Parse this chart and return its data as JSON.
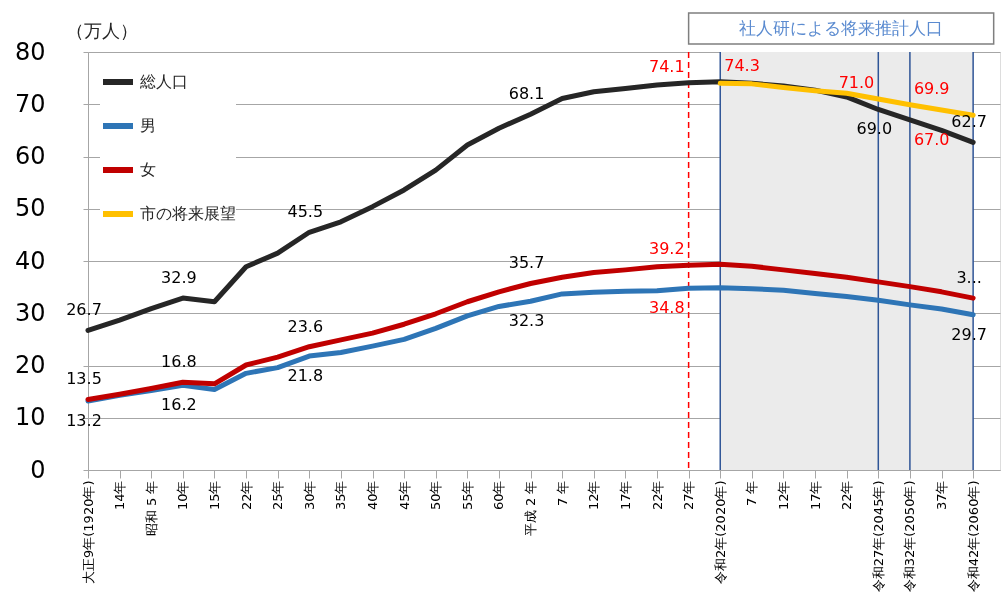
{
  "chart_data": {
    "type": "line",
    "ylabel": "（万人）",
    "categories": [
      "大正9年(1920年)",
      "14年",
      "昭和 5 年",
      "10年",
      "15年",
      "22年",
      "25年",
      "30年",
      "35年",
      "40年",
      "45年",
      "50年",
      "55年",
      "60年",
      "平成 2 年",
      "7 年",
      "12年",
      "17年",
      "22年",
      "27年",
      "令和2年(2020年)",
      "7 年",
      "12年",
      "17年",
      "22年",
      "令和27年(2045年)",
      "令和32年(2050年)",
      "37年",
      "令和42年(2060年)"
    ],
    "series": [
      {
        "name": "総人口",
        "color": "#262626",
        "values": [
          26.7,
          28.7,
          30.9,
          32.9,
          32.2,
          38.9,
          41.5,
          45.5,
          47.5,
          50.4,
          53.6,
          57.4,
          62.2,
          65.4,
          68.1,
          71.1,
          72.4,
          73.0,
          73.7,
          74.1,
          74.3,
          74.0,
          73.5,
          72.7,
          71.4,
          69.0,
          67.0,
          65.0,
          62.7
        ],
        "value_labels": [
          "26.7",
          null,
          null,
          "32.9",
          null,
          null,
          null,
          "45.5",
          null,
          null,
          null,
          null,
          null,
          null,
          "68.1",
          null,
          null,
          null,
          null,
          null,
          null,
          null,
          null,
          null,
          null,
          "69.0",
          null,
          null,
          "62.7"
        ]
      },
      {
        "name": "男",
        "color": "#2e75b6",
        "values": [
          13.2,
          14.3,
          15.2,
          16.2,
          15.4,
          18.5,
          19.6,
          21.8,
          22.5,
          23.7,
          25.0,
          27.1,
          29.5,
          31.3,
          32.3,
          33.7,
          34.0,
          34.2,
          34.3,
          34.8,
          34.9,
          34.7,
          34.4,
          33.8,
          33.2,
          32.5,
          31.6,
          30.8,
          29.7
        ],
        "value_labels": [
          "13.2",
          null,
          null,
          "16.2",
          null,
          null,
          null,
          "21.8",
          null,
          null,
          null,
          null,
          null,
          null,
          "32.3",
          null,
          null,
          null,
          null,
          null,
          null,
          null,
          null,
          null,
          null,
          null,
          null,
          null,
          "29.7"
        ]
      },
      {
        "name": "女",
        "color": "#c00000",
        "values": [
          13.5,
          14.5,
          15.6,
          16.8,
          16.5,
          20.1,
          21.6,
          23.6,
          24.9,
          26.2,
          27.9,
          29.9,
          32.2,
          34.1,
          35.7,
          36.9,
          37.8,
          38.3,
          38.9,
          39.2,
          39.4,
          39.0,
          38.3,
          37.6,
          36.9,
          36.0,
          35.1,
          34.1,
          32.9
        ],
        "value_labels": [
          "13.5",
          null,
          null,
          "16.8",
          null,
          null,
          null,
          "23.6",
          null,
          null,
          null,
          null,
          null,
          null,
          "35.7",
          null,
          null,
          null,
          null,
          null,
          null,
          null,
          null,
          null,
          null,
          null,
          null,
          null,
          "3..."
        ]
      },
      {
        "name": "市の将来展望",
        "color": "#ffc000",
        "values": [
          null,
          null,
          null,
          null,
          null,
          null,
          null,
          null,
          null,
          null,
          null,
          null,
          null,
          null,
          null,
          null,
          null,
          null,
          null,
          null,
          74.0,
          73.9,
          73.2,
          72.6,
          72.1,
          71.0,
          69.9,
          68.9,
          67.9
        ]
      }
    ],
    "ylim": [
      0,
      80
    ],
    "yticks": [
      0,
      10,
      20,
      30,
      40,
      50,
      60,
      70,
      80
    ],
    "grid": "y",
    "legend": "top left",
    "ref_lines": [
      {
        "axis": "x",
        "value": "27年",
        "color": "#ff0000",
        "line_style": "dashed"
      },
      {
        "axis": "x",
        "value": "令和2年(2020年)",
        "color": "#2f5597",
        "line_style": "solid"
      },
      {
        "axis": "x",
        "value": "令和27年(2045年)",
        "color": "#2f5597",
        "line_style": "solid"
      },
      {
        "axis": "x",
        "value": "令和32年(2050年)",
        "color": "#2f5597",
        "line_style": "solid"
      },
      {
        "axis": "x",
        "value": "令和42年(2060年)",
        "color": "#2f5597",
        "line_style": "solid"
      }
    ],
    "bands": [
      {
        "axis": "x",
        "from": "令和2年(2020年)",
        "to": "令和42年(2060年)",
        "label": "社人研による将来推計人口",
        "color": "#ebebeb"
      }
    ],
    "annotations": [
      {
        "text": "74.1",
        "x": "27年",
        "y": 74.1
      },
      {
        "text": "74.3",
        "x": "令和2年(2020年)",
        "y": 74.3
      },
      {
        "text": "39.2",
        "x": "27年",
        "y": 39.2
      },
      {
        "text": "34.8",
        "x": "27年",
        "y": 34.8
      },
      {
        "text": "71.0",
        "x": "令和27年(2045年)",
        "y": 71.0
      },
      {
        "text": "69.9",
        "x": "令和32年(2050年)",
        "y": 69.9
      },
      {
        "text": "67.0",
        "x": "令和32年(2050年)",
        "y": 67.0
      }
    ]
  }
}
